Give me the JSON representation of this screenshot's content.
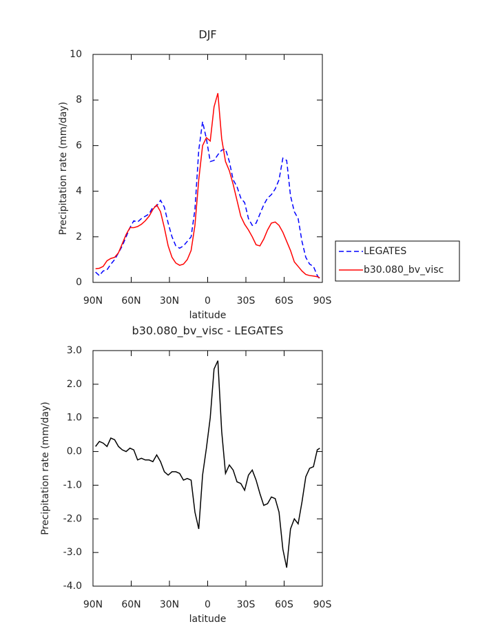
{
  "chart_data": [
    {
      "type": "line",
      "title": "DJF",
      "x_label": "latitude",
      "y_label": "Precipitation rate (mm/day)",
      "x": [
        88,
        85,
        82,
        79,
        76,
        73,
        70,
        67,
        64,
        61,
        58,
        55,
        52,
        49,
        46,
        43,
        40,
        37,
        34,
        31,
        28,
        25,
        22,
        19,
        16,
        13,
        10,
        7,
        4,
        1,
        -2,
        -5,
        -8,
        -11,
        -14,
        -17,
        -20,
        -23,
        -26,
        -29,
        -32,
        -35,
        -38,
        -41,
        -44,
        -47,
        -50,
        -53,
        -56,
        -59,
        -62,
        -65,
        -68,
        -71,
        -74,
        -77,
        -80,
        -83,
        -86,
        -88
      ],
      "xlim": [
        90,
        -90
      ],
      "xticks": [
        {
          "value": 90,
          "label": "90N"
        },
        {
          "value": 60,
          "label": "60N"
        },
        {
          "value": 30,
          "label": "30N"
        },
        0,
        {
          "value": -30,
          "label": "30S"
        },
        {
          "value": -60,
          "label": "60S"
        },
        {
          "value": -90,
          "label": "90S"
        }
      ],
      "ylim": [
        0,
        10
      ],
      "yticks": [
        0,
        2,
        4,
        6,
        8,
        10
      ],
      "legend": "right",
      "series": [
        {
          "name": "LEGATES",
          "color": "#0000ff",
          "dash": "dashed",
          "values": [
            0.45,
            0.3,
            0.5,
            0.55,
            0.8,
            1.0,
            1.3,
            1.6,
            2.0,
            2.4,
            2.7,
            2.65,
            2.8,
            2.9,
            3.0,
            3.3,
            3.35,
            3.6,
            3.3,
            2.6,
            2.0,
            1.6,
            1.5,
            1.6,
            1.8,
            2.0,
            3.2,
            5.8,
            7.05,
            6.3,
            5.3,
            5.35,
            5.6,
            5.8,
            5.85,
            5.3,
            4.5,
            4.2,
            3.7,
            3.5,
            2.8,
            2.5,
            2.6,
            3.0,
            3.4,
            3.7,
            3.85,
            4.1,
            4.5,
            5.45,
            5.35,
            3.8,
            3.1,
            2.8,
            1.8,
            1.1,
            0.8,
            0.7,
            0.3,
            0.15
          ]
        },
        {
          "name": "b30.080_bv_visc",
          "color": "#ff0000",
          "dash": "solid",
          "values": [
            0.6,
            0.62,
            0.7,
            0.95,
            1.05,
            1.1,
            1.3,
            1.7,
            2.1,
            2.4,
            2.4,
            2.45,
            2.55,
            2.7,
            2.9,
            3.2,
            3.4,
            3.1,
            2.4,
            1.6,
            1.1,
            0.85,
            0.75,
            0.8,
            1.0,
            1.4,
            2.5,
            4.5,
            6.0,
            6.35,
            6.2,
            7.7,
            8.3,
            6.3,
            5.3,
            4.9,
            4.3,
            3.6,
            2.9,
            2.55,
            2.3,
            2.0,
            1.65,
            1.6,
            1.9,
            2.3,
            2.6,
            2.65,
            2.5,
            2.2,
            1.8,
            1.4,
            0.9,
            0.7,
            0.5,
            0.35,
            0.3,
            0.28,
            0.25,
            0.2
          ]
        }
      ]
    },
    {
      "type": "line",
      "title": "b30.080_bv_visc - LEGATES",
      "x_label": "latitude",
      "y_label": "Precipitation rate (mm/day)",
      "x": [
        88,
        85,
        82,
        79,
        76,
        73,
        70,
        67,
        64,
        61,
        58,
        55,
        52,
        49,
        46,
        43,
        40,
        37,
        34,
        31,
        28,
        25,
        22,
        19,
        16,
        13,
        10,
        7,
        4,
        1,
        -2,
        -5,
        -8,
        -11,
        -14,
        -17,
        -20,
        -23,
        -26,
        -29,
        -32,
        -35,
        -38,
        -41,
        -44,
        -47,
        -50,
        -53,
        -56,
        -59,
        -62,
        -65,
        -68,
        -71,
        -74,
        -77,
        -80,
        -83,
        -86,
        -88
      ],
      "xlim": [
        90,
        -90
      ],
      "xticks": [
        {
          "value": 90,
          "label": "90N"
        },
        {
          "value": 60,
          "label": "60N"
        },
        {
          "value": 30,
          "label": "30N"
        },
        0,
        {
          "value": -30,
          "label": "30S"
        },
        {
          "value": -60,
          "label": "60S"
        },
        {
          "value": -90,
          "label": "90S"
        }
      ],
      "ylim": [
        -4,
        3
      ],
      "yticks": [
        {
          "value": -4,
          "label": "-4.0"
        },
        {
          "value": -3,
          "label": "-3.0"
        },
        {
          "value": -2,
          "label": "-2.0"
        },
        {
          "value": -1,
          "label": "-1.0"
        },
        {
          "value": 0,
          "label": "0.0"
        },
        {
          "value": 1,
          "label": "1.0"
        },
        {
          "value": 2,
          "label": "2.0"
        },
        {
          "value": 3,
          "label": "3.0"
        }
      ],
      "series": [
        {
          "color": "#000000",
          "dash": "solid",
          "values": [
            0.15,
            0.3,
            0.25,
            0.15,
            0.4,
            0.35,
            0.15,
            0.05,
            0.0,
            0.1,
            0.05,
            -0.25,
            -0.2,
            -0.25,
            -0.25,
            -0.3,
            -0.1,
            -0.3,
            -0.6,
            -0.7,
            -0.6,
            -0.6,
            -0.65,
            -0.85,
            -0.8,
            -0.85,
            -1.8,
            -2.3,
            -0.7,
            0.1,
            1.0,
            2.45,
            2.7,
            0.6,
            -0.65,
            -0.4,
            -0.55,
            -0.9,
            -0.95,
            -1.15,
            -0.7,
            -0.55,
            -0.85,
            -1.25,
            -1.6,
            -1.55,
            -1.35,
            -1.4,
            -1.8,
            -2.9,
            -3.45,
            -2.3,
            -2.0,
            -2.15,
            -1.5,
            -0.75,
            -0.5,
            -0.45,
            0.05,
            0.1
          ]
        }
      ]
    }
  ]
}
